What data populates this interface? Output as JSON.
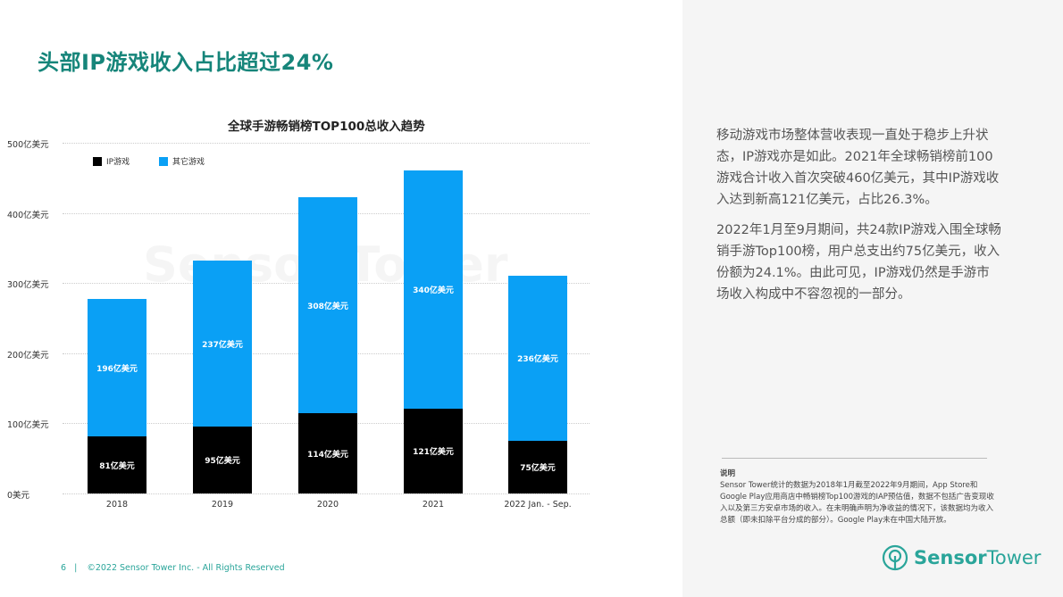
{
  "page": {
    "title": "头部IP游戏收入占比超过24%",
    "footer_page": "6",
    "footer_sep": "|",
    "footer_copyright": "©2022 Sensor Tower Inc. - All Rights Reserved",
    "watermark": "Sensor Tower"
  },
  "sidebar": {
    "para1": "移动游戏市场整体营收表现一直处于稳步上升状态，IP游戏亦是如此。2021年全球畅销榜前100游戏合计收入首次突破460亿美元，其中IP游戏收入达到新高121亿美元，占比26.3%。",
    "para2": "2022年1月至9月期间，共24款IP游戏入围全球畅销手游Top100榜，用户总支出约75亿美元，收入份额为24.1%。由此可见，IP游戏仍然是手游市场收入构成中不容忽视的一部分。",
    "note_title": "说明",
    "note_body": "Sensor Tower统计的数据为2018年1月截至2022年9月期间，App Store和Google Play应用商店中畅销榜Top100游戏的IAP预估值，数据不包括广告变现收入以及第三方安卓市场的收入。在未明确声明为净收益的情况下，该数据均为收入总额（即未扣除平台分成的部分）。Google Play未在中国大陆开放。",
    "logo_sensor": "Sensor",
    "logo_tower": "Tower"
  },
  "chart_data": {
    "type": "bar",
    "stacked": true,
    "title": "全球手游畅销榜TOP100总收入趋势",
    "xlabel": "",
    "ylabel": "",
    "ylim": [
      0,
      500
    ],
    "yticks": [
      "0美元",
      "100亿美元",
      "200亿美元",
      "300亿美元",
      "400亿美元",
      "500亿美元"
    ],
    "categories": [
      "2018",
      "2019",
      "2020",
      "2021",
      "2022 Jan. - Sep."
    ],
    "series": [
      {
        "name": "IP游戏",
        "color": "#000000",
        "values": [
          81,
          95,
          114,
          121,
          75
        ],
        "labels": [
          "81亿美元",
          "95亿美元",
          "114亿美元",
          "121亿美元",
          "75亿美元"
        ]
      },
      {
        "name": "其它游戏",
        "color": "#0aa0f5",
        "values": [
          196,
          237,
          308,
          340,
          236
        ],
        "labels": [
          "196亿美元",
          "237亿美元",
          "308亿美元",
          "340亿美元",
          "236亿美元"
        ]
      }
    ],
    "legend_position": "top-left",
    "grid": true
  }
}
